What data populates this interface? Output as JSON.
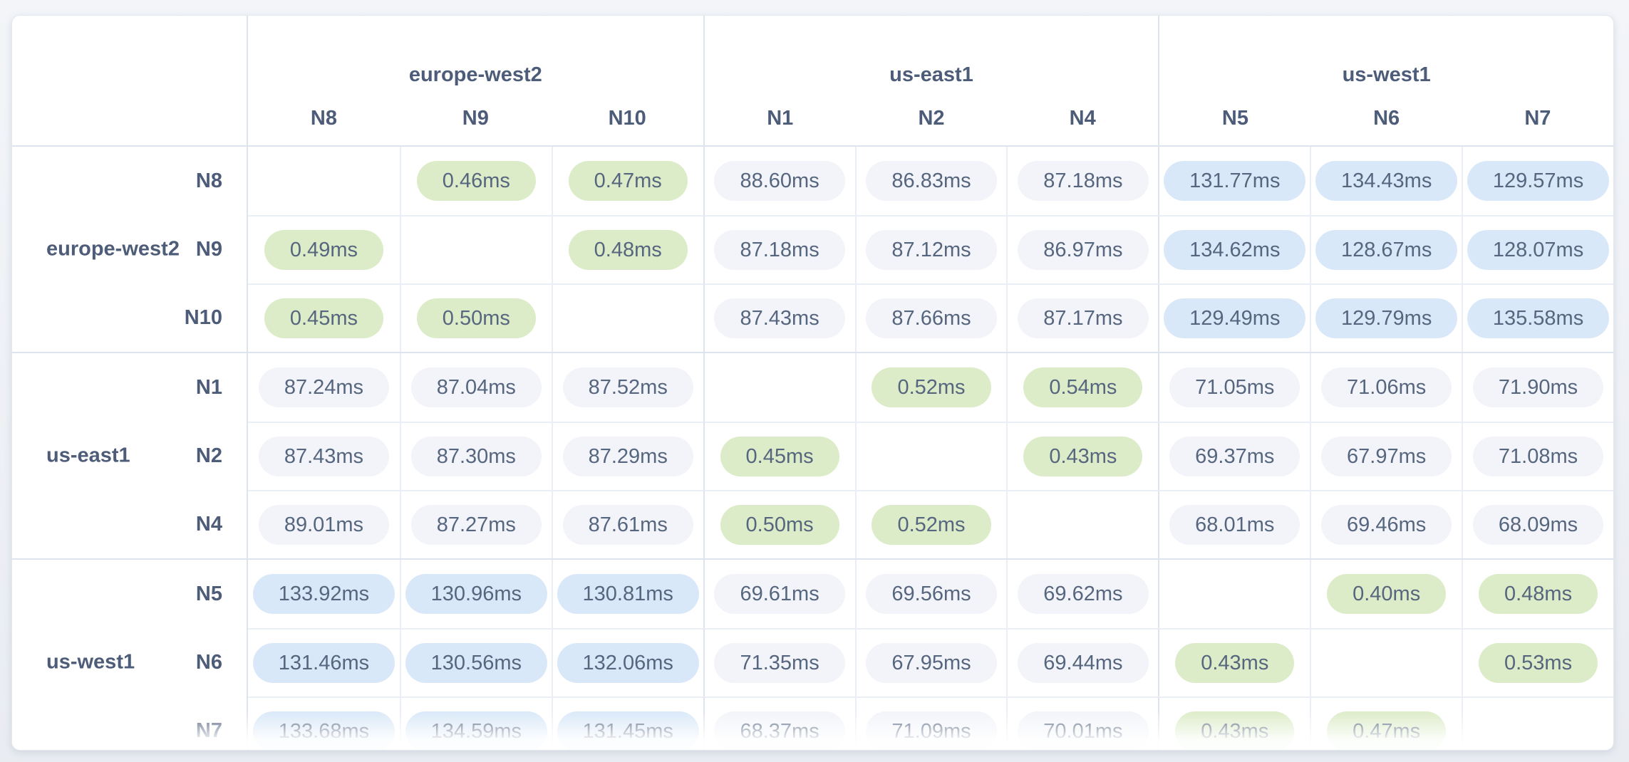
{
  "table": {
    "column_groups": [
      {
        "region": "europe-west2",
        "nodes": [
          "N8",
          "N9",
          "N10"
        ]
      },
      {
        "region": "us-east1",
        "nodes": [
          "N1",
          "N2",
          "N4"
        ]
      },
      {
        "region": "us-west1",
        "nodes": [
          "N5",
          "N6",
          "N7"
        ]
      }
    ],
    "row_groups": [
      {
        "region": "europe-west2",
        "rows": [
          {
            "node": "N8",
            "values": [
              null,
              "0.46ms",
              "0.47ms",
              "88.60ms",
              "86.83ms",
              "87.18ms",
              "131.77ms",
              "134.43ms",
              "129.57ms"
            ]
          },
          {
            "node": "N9",
            "values": [
              "0.49ms",
              null,
              "0.48ms",
              "87.18ms",
              "87.12ms",
              "86.97ms",
              "134.62ms",
              "128.67ms",
              "128.07ms"
            ]
          },
          {
            "node": "N10",
            "values": [
              "0.45ms",
              "0.50ms",
              null,
              "87.43ms",
              "87.66ms",
              "87.17ms",
              "129.49ms",
              "129.79ms",
              "135.58ms"
            ]
          }
        ]
      },
      {
        "region": "us-east1",
        "rows": [
          {
            "node": "N1",
            "values": [
              "87.24ms",
              "87.04ms",
              "87.52ms",
              null,
              "0.52ms",
              "0.54ms",
              "71.05ms",
              "71.06ms",
              "71.90ms"
            ]
          },
          {
            "node": "N2",
            "values": [
              "87.43ms",
              "87.30ms",
              "87.29ms",
              "0.45ms",
              null,
              "0.43ms",
              "69.37ms",
              "67.97ms",
              "71.08ms"
            ]
          },
          {
            "node": "N4",
            "values": [
              "89.01ms",
              "87.27ms",
              "87.61ms",
              "0.50ms",
              "0.52ms",
              null,
              "68.01ms",
              "69.46ms",
              "68.09ms"
            ]
          }
        ]
      },
      {
        "region": "us-west1",
        "rows": [
          {
            "node": "N5",
            "values": [
              "133.92ms",
              "130.96ms",
              "130.81ms",
              "69.61ms",
              "69.56ms",
              "69.62ms",
              null,
              "0.40ms",
              "0.48ms"
            ]
          },
          {
            "node": "N6",
            "values": [
              "131.46ms",
              "130.56ms",
              "132.06ms",
              "71.35ms",
              "67.95ms",
              "69.44ms",
              "0.43ms",
              null,
              "0.53ms"
            ]
          },
          {
            "node": "N7",
            "values": [
              "133.68ms",
              "134.59ms",
              "131.45ms",
              "68.37ms",
              "71.09ms",
              "70.01ms",
              "0.43ms",
              "0.47ms",
              null
            ]
          }
        ]
      }
    ],
    "tier_rules": {
      "low_below_ms": 1,
      "high_at_least_ms": 100
    }
  },
  "colors": {
    "page_bg_top": "#f3f5f9",
    "page_bg_bottom": "#e9ecf1",
    "card_bg": "#ffffff",
    "card_border": "#e3e8ef",
    "grid_line_inner": "#eaeef5",
    "grid_line_group": "#dee4ee",
    "label_text": "#4d5c78",
    "value_text": "#57667f",
    "pill_low_bg": "#dcecc8",
    "pill_mid_bg": "#f2f4f9",
    "pill_high_bg": "#d9e8f8"
  }
}
